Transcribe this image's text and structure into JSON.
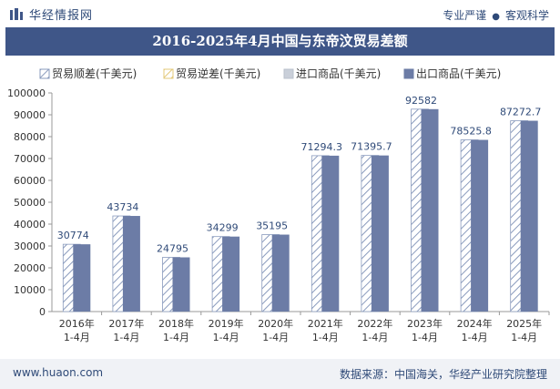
{
  "header": {
    "brand": "华经情报网",
    "slogan_left": "专业严谨",
    "slogan_right": "客观科学"
  },
  "title": "2016-2025年4月中国与东帝汶贸易差额",
  "footer": {
    "website": "www.huaon.com",
    "source": "数据来源：中国海关，华经产业研究院整理"
  },
  "colors": {
    "title_bg": "#3f5688",
    "export_bar": "#6c7ca6",
    "import_bar": "#c9cfd9",
    "surplus_hatch": "#8a9bbd",
    "deficit_hatch": "#e3c878"
  },
  "chart_data": {
    "type": "bar",
    "categories": [
      [
        "2016年",
        "1-4月"
      ],
      [
        "2017年",
        "1-4月"
      ],
      [
        "2018年",
        "1-4月"
      ],
      [
        "2019年",
        "1-4月"
      ],
      [
        "2020年",
        "1-4月"
      ],
      [
        "2021年",
        "1-4月"
      ],
      [
        "2022年",
        "1-4月"
      ],
      [
        "2023年",
        "1-4月"
      ],
      [
        "2024年",
        "1-4月"
      ],
      [
        "2025年",
        "1-4月"
      ]
    ],
    "series": [
      {
        "name": "贸易顺差(千美元)",
        "values": [
          30774,
          43734,
          24795,
          34299,
          35195,
          71294.3,
          71395.7,
          92582,
          78525.8,
          87272.7
        ]
      },
      {
        "name": "贸易逆差(千美元)",
        "values": [
          0,
          0,
          0,
          0,
          0,
          0,
          0,
          0,
          0,
          0
        ]
      },
      {
        "name": "进口商品(千美元)",
        "values": [
          0,
          0,
          0,
          0,
          0,
          0,
          0,
          0,
          0,
          0
        ]
      },
      {
        "name": "出口商品(千美元)",
        "values": [
          30774,
          43734,
          24795,
          34299,
          35195,
          71294.3,
          71395.7,
          92582,
          78525.8,
          87272.7
        ]
      }
    ],
    "data_labels": [
      "30774",
      "43734",
      "24795",
      "34299",
      "35195",
      "71294.3",
      "71395.7",
      "92582",
      "78525.8",
      "87272.7"
    ],
    "y_ticks": [
      "0",
      "10000",
      "20000",
      "30000",
      "40000",
      "50000",
      "60000",
      "70000",
      "80000",
      "90000",
      "100000"
    ],
    "ylim": [
      0,
      100000
    ],
    "legend_position": "top",
    "grid": false
  }
}
